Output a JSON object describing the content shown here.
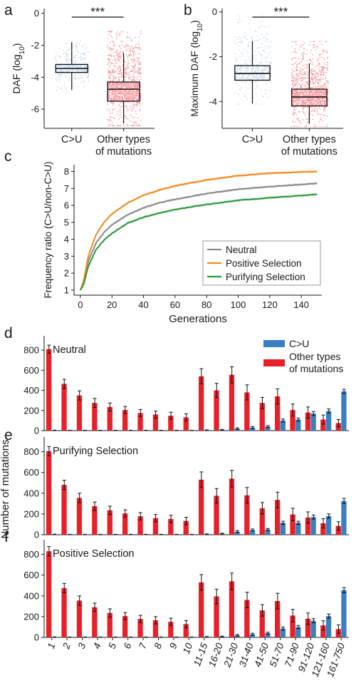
{
  "colors": {
    "cu": "#3a7fc1",
    "other": "#e8202a",
    "neutral": "#8a8a8a",
    "positive": "#f58a1f",
    "purifying": "#2a9a3a",
    "axis": "#1a1a1a"
  },
  "chart_data": [
    {
      "panel": "a",
      "type": "box",
      "ylabel": "DAF (log10)",
      "ylabel_main": "DAF (log",
      "ylabel_sub": "10",
      "ylabel_close": ")",
      "categories": [
        "C>U",
        "Other types of mutations"
      ],
      "category_lines": [
        [
          "C>U"
        ],
        [
          "Other types",
          "of mutations"
        ]
      ],
      "yticks": [
        0,
        -2,
        -4,
        -6
      ],
      "ylim": [
        -7.2,
        0.3
      ],
      "significance": "***",
      "boxes": [
        {
          "min": -4.8,
          "q1": -3.7,
          "median": -3.45,
          "q3": -3.2,
          "max": -1.8,
          "cloud_lo": -4.8,
          "cloud_hi": -1.7
        },
        {
          "min": -6.9,
          "q1": -5.5,
          "median": -4.75,
          "q3": -4.3,
          "max": -2.5,
          "cloud_lo": -7.0,
          "cloud_hi": -1.1
        }
      ]
    },
    {
      "panel": "b",
      "type": "box",
      "ylabel": "Maximum DAF (log10)",
      "ylabel_main": "Maximum DAF (log",
      "ylabel_sub": "10",
      "ylabel_close": ")",
      "categories": [
        "C>U",
        "Other types of mutations"
      ],
      "category_lines": [
        [
          "C>U"
        ],
        [
          "Other types",
          "of mutations"
        ]
      ],
      "yticks": [
        0,
        -2,
        -4
      ],
      "ylim": [
        -5.2,
        0.15
      ],
      "significance": "***",
      "boxes": [
        {
          "min": -4.1,
          "q1": -3.05,
          "median": -2.75,
          "q3": -2.4,
          "max": -1.3,
          "cloud_lo": -4.1,
          "cloud_hi": -0.1
        },
        {
          "min": -5.0,
          "q1": -4.2,
          "median": -3.8,
          "q3": -3.45,
          "max": -2.3,
          "cloud_lo": -5.1,
          "cloud_hi": -1.3
        }
      ]
    },
    {
      "panel": "c",
      "type": "line",
      "xlabel": "Generations",
      "ylabel": "Frequency ratio (C>U/non-C>U)",
      "xticks": [
        0,
        20,
        40,
        60,
        80,
        100,
        120,
        140
      ],
      "yticks": [
        1,
        2,
        3,
        4,
        5,
        6,
        7,
        8
      ],
      "xlim": [
        -4,
        153
      ],
      "ylim": [
        0.7,
        8.4
      ],
      "legend_position": "bottom-right",
      "series": [
        {
          "name": "Neutral",
          "color_key": "neutral",
          "x": [
            0,
            2,
            5,
            10,
            15,
            20,
            30,
            40,
            50,
            60,
            80,
            100,
            120,
            150
          ],
          "y": [
            1.0,
            1.4,
            2.7,
            3.8,
            4.4,
            4.85,
            5.45,
            5.85,
            6.15,
            6.35,
            6.7,
            6.95,
            7.1,
            7.3
          ]
        },
        {
          "name": "Positive Selection",
          "color_key": "positive",
          "x": [
            0,
            2,
            5,
            10,
            15,
            20,
            30,
            40,
            50,
            60,
            80,
            100,
            120,
            150
          ],
          "y": [
            1.0,
            1.5,
            3.0,
            4.3,
            5.0,
            5.5,
            6.15,
            6.6,
            6.9,
            7.15,
            7.5,
            7.75,
            7.9,
            8.0
          ]
        },
        {
          "name": "Purifying Selection",
          "color_key": "purifying",
          "x": [
            0,
            2,
            5,
            10,
            15,
            20,
            30,
            40,
            50,
            60,
            80,
            100,
            120,
            150
          ],
          "y": [
            1.0,
            1.3,
            2.4,
            3.4,
            3.95,
            4.35,
            4.95,
            5.3,
            5.55,
            5.75,
            6.05,
            6.3,
            6.45,
            6.65
          ]
        }
      ]
    },
    {
      "panel": "d-f",
      "type": "bar",
      "xlabel": "",
      "ylabel": "Number of mutations",
      "categories": [
        "1",
        "2",
        "3",
        "4",
        "5",
        "6",
        "7",
        "8",
        "9",
        "10",
        "11-15",
        "16-20",
        "21-30",
        "31-40",
        "41-50",
        "51-70",
        "71-90",
        "91-120",
        "121-160",
        "161-750"
      ],
      "yticks": [
        0,
        200,
        400,
        600,
        800
      ],
      "ylim": [
        0,
        900
      ],
      "legend": [
        "C>U",
        "Other types of mutations"
      ],
      "legend_lines": [
        [
          "C>U"
        ],
        [
          "Other types",
          "of mutations"
        ]
      ],
      "panels": [
        {
          "label": "d",
          "title": "Neutral",
          "show_legend": true,
          "series": [
            {
              "name": "C>U",
              "color_key": "cu",
              "values": [
                3,
                2,
                2,
                2,
                2,
                2,
                2,
                2,
                2,
                2,
                5,
                8,
                20,
                30,
                40,
                100,
                110,
                170,
                195,
                390
              ],
              "errors": [
                2,
                2,
                2,
                2,
                2,
                2,
                2,
                2,
                2,
                2,
                3,
                4,
                8,
                10,
                10,
                15,
                15,
                20,
                20,
                20
              ]
            },
            {
              "name": "Other types of mutations",
              "color_key": "other",
              "values": [
                810,
                465,
                350,
                275,
                235,
                205,
                175,
                160,
                148,
                132,
                540,
                400,
                555,
                380,
                275,
                340,
                205,
                180,
                110,
                75
              ],
              "errors": [
                40,
                45,
                45,
                45,
                40,
                35,
                35,
                35,
                35,
                35,
                75,
                70,
                80,
                75,
                55,
                75,
                60,
                55,
                45,
                35
              ]
            }
          ]
        },
        {
          "label": "e",
          "title": "Purifying Selection",
          "show_legend": false,
          "series": [
            {
              "name": "C>U",
              "color_key": "cu",
              "values": [
                3,
                2,
                2,
                2,
                2,
                2,
                2,
                2,
                2,
                2,
                5,
                10,
                30,
                45,
                50,
                115,
                115,
                170,
                180,
                325
              ],
              "errors": [
                2,
                2,
                2,
                2,
                2,
                2,
                2,
                2,
                2,
                2,
                3,
                4,
                10,
                10,
                10,
                15,
                15,
                20,
                20,
                25
              ]
            },
            {
              "name": "Other types of mutations",
              "color_key": "other",
              "values": [
                805,
                480,
                355,
                275,
                235,
                205,
                178,
                160,
                152,
                133,
                530,
                375,
                540,
                380,
                255,
                335,
                195,
                165,
                110,
                85
              ],
              "errors": [
                45,
                45,
                45,
                40,
                40,
                35,
                35,
                35,
                35,
                35,
                75,
                70,
                80,
                75,
                55,
                75,
                60,
                55,
                45,
                40
              ]
            }
          ]
        },
        {
          "label": "f",
          "title": "Positive Selection",
          "show_legend": false,
          "series": [
            {
              "name": "C>U",
              "color_key": "cu",
              "values": [
                3,
                2,
                2,
                2,
                2,
                2,
                2,
                2,
                2,
                2,
                5,
                8,
                20,
                30,
                40,
                85,
                100,
                160,
                205,
                455
              ],
              "errors": [
                2,
                2,
                2,
                2,
                2,
                2,
                2,
                2,
                2,
                2,
                3,
                4,
                8,
                10,
                10,
                15,
                15,
                20,
                20,
                25
              ]
            },
            {
              "name": "Other types of mutations",
              "color_key": "other",
              "values": [
                830,
                475,
                355,
                290,
                235,
                205,
                178,
                165,
                150,
                128,
                530,
                395,
                540,
                360,
                260,
                350,
                210,
                180,
                115,
                80
              ],
              "errors": [
                45,
                45,
                45,
                40,
                40,
                35,
                35,
                35,
                35,
                35,
                75,
                70,
                80,
                75,
                55,
                75,
                60,
                55,
                45,
                40
              ]
            }
          ]
        }
      ]
    }
  ]
}
